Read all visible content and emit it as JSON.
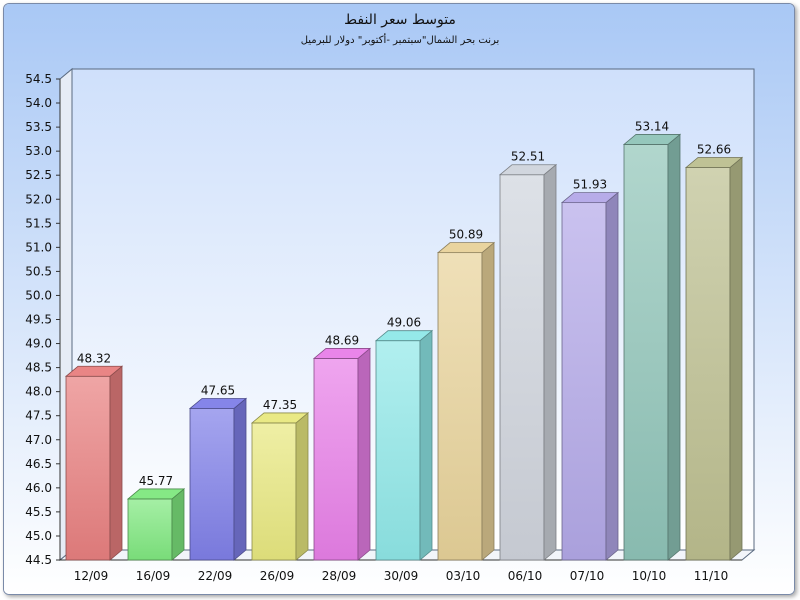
{
  "chart_data": {
    "type": "bar",
    "title": "متوسط سعر النفط",
    "subtitle": "برنت بحر الشمال\"سبتمبر -أكتوبر\" دولار للبرميل",
    "categories": [
      "12/09",
      "16/09",
      "22/09",
      "26/09",
      "28/09",
      "30/09",
      "03/10",
      "06/10",
      "07/10",
      "10/10",
      "11/10"
    ],
    "values": [
      48.32,
      45.77,
      47.65,
      47.35,
      48.69,
      49.06,
      50.89,
      52.51,
      51.93,
      53.14,
      52.66
    ],
    "ylim": [
      44.5,
      54.5
    ],
    "ytick_step": 0.5,
    "yticks": [
      "44.5",
      "45.0",
      "45.5",
      "46.0",
      "46.5",
      "47.0",
      "47.5",
      "48.0",
      "48.5",
      "49.0",
      "49.5",
      "50.0",
      "50.5",
      "51.0",
      "51.5",
      "52.0",
      "52.5",
      "53.0",
      "53.5",
      "54.0",
      "54.5"
    ],
    "grid": false,
    "legend": "none",
    "bar_colors": [
      "#e87f7f",
      "#7fe87f",
      "#7f7fe8",
      "#e8e87f",
      "#e87fe8",
      "#8fe8e8",
      "#e8d29a",
      "#cfd4dc",
      "#b3a8e8",
      "#8fc4b8",
      "#bcbf8f"
    ],
    "background_top": "#a9c8f5",
    "background_bottom": "#ffffff"
  }
}
